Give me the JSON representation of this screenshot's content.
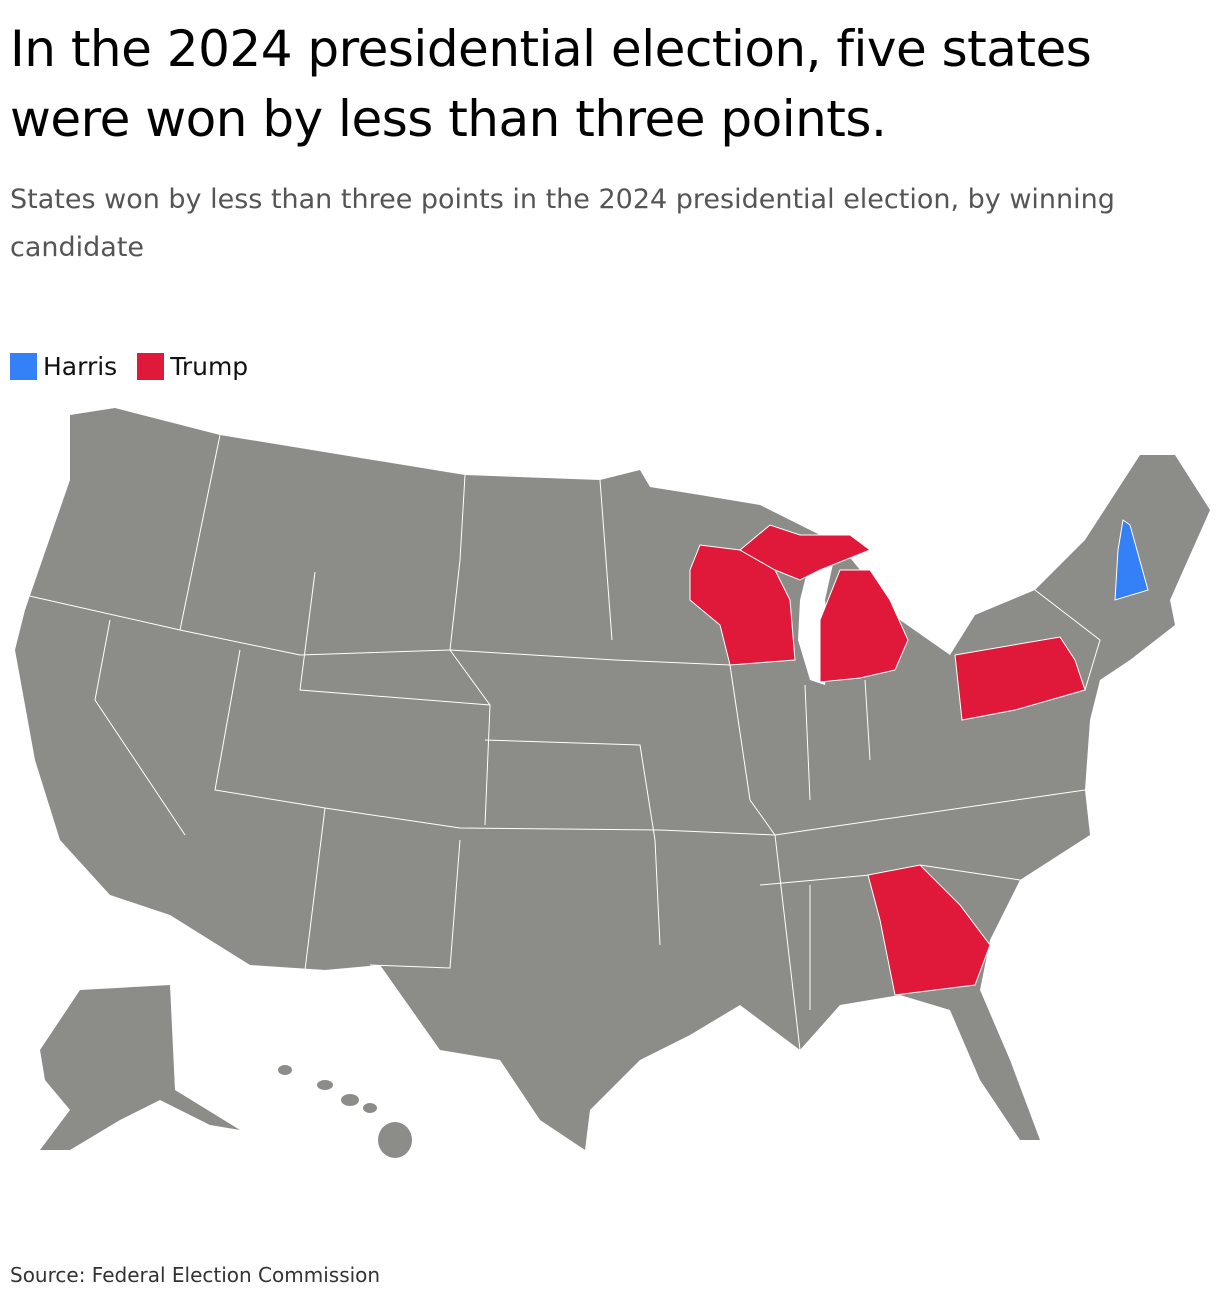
{
  "header": {
    "title": "In the 2024 presidential election, five states were won by less than three points.",
    "subtitle": "States won by less than three points in the 2024 presidential election, by winning candidate"
  },
  "legend": [
    {
      "label": "Harris",
      "color": "#3380f7"
    },
    {
      "label": "Trump",
      "color": "#e0193a"
    }
  ],
  "map": {
    "base_color": "#8c8c88",
    "border_color": "#ffffff"
  },
  "source": "Source: Federal Election Commission"
}
